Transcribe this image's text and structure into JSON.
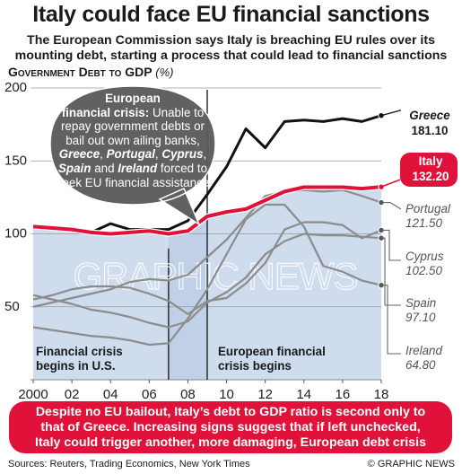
{
  "title": "Italy could face EU financial sanctions",
  "subtitle_line1": "The European Commission says Italy is breaching EU rules over its",
  "subtitle_line2": "mounting debt, starting a process that could lead to financial sanctions",
  "ylabel_main": "Government Debt to GDP",
  "ylabel_unit": "(%)",
  "bubble": {
    "heading_line1": "European",
    "heading_line2": "financial crisis:",
    "text_1": "Unable to repay government debts or bail out own ailing banks,",
    "country_1": "Greece",
    "country_2": "Portugal",
    "country_3": "Cyprus",
    "country_4": "Spain",
    "word_and": "and",
    "country_5": "Ireland",
    "text_2": "forced to seek EU financial assistance"
  },
  "annotations": {
    "us_crisis_line1": "Financial crisis",
    "us_crisis_line2": "begins in U.S.",
    "eu_crisis_line1": "European financial",
    "eu_crisis_line2": "crisis begins"
  },
  "bottom_line1": "Despite no EU bailout, Italy’s debt to GDP ratio is second only to",
  "bottom_line2": "that of Greece. Increasing signs suggest that if left unchecked,",
  "bottom_line3": "Italy could trigger another, more damaging, European debt crisis",
  "sources": "Sources: Reuters, Trading Economics, New York Times",
  "credit": "© GRAPHIC NEWS",
  "watermark": "GRAPHIC NEWS",
  "colors": {
    "accent_red": "#e0123a",
    "area_blue": "#cfdcee",
    "bubble_grey": "#5c5c5c",
    "other_lines": "#8c8c8c",
    "greece_line": "#111111"
  },
  "chart_data": {
    "type": "line",
    "title": "Government Debt to GDP (%)",
    "x": [
      2000,
      2001,
      2002,
      2003,
      2004,
      2005,
      2006,
      2007,
      2008,
      2009,
      2010,
      2011,
      2012,
      2013,
      2014,
      2015,
      2016,
      2017,
      2018
    ],
    "xticks": [
      2000,
      2002,
      2004,
      2006,
      2008,
      2010,
      2012,
      2014,
      2016,
      2018
    ],
    "xtick_labels": [
      "2000",
      "02",
      "04",
      "06",
      "08",
      "10",
      "12",
      "14",
      "16",
      "18"
    ],
    "ylim": [
      0,
      200
    ],
    "yticks": [
      50,
      100,
      150,
      200
    ],
    "grid": true,
    "shaded_range": [
      2007,
      2009
    ],
    "events": [
      {
        "x": 2007,
        "label": "Financial crisis begins in U.S."
      },
      {
        "x": 2009,
        "label": "European financial crisis begins"
      }
    ],
    "series": [
      {
        "name": "Greece",
        "value_label": "181.10",
        "values": [
          104,
          103,
          103,
          101,
          107,
          103,
          103,
          103,
          109,
          127,
          146,
          172,
          159,
          177,
          178,
          177,
          179,
          177,
          181.1
        ]
      },
      {
        "name": "Italy",
        "value_label": "132.20",
        "values": [
          105,
          104,
          103,
          101,
          100,
          101,
          102,
          100,
          102,
          112,
          115,
          117,
          123,
          129,
          132,
          132,
          132,
          131,
          132.2
        ]
      },
      {
        "name": "Portugal",
        "value_label": "121.50",
        "values": [
          50,
          53,
          56,
          59,
          62,
          67,
          69,
          68,
          72,
          84,
          96,
          111,
          126,
          129,
          130,
          129,
          130,
          126,
          121.5
        ]
      },
      {
        "name": "Cyprus",
        "value_label": "102.50",
        "values": [
          55,
          58,
          62,
          64,
          64,
          63,
          59,
          54,
          45,
          54,
          56,
          66,
          80,
          103,
          108,
          108,
          106,
          97,
          102.5
        ]
      },
      {
        "name": "Spain",
        "value_label": "97.10",
        "values": [
          58,
          55,
          52,
          48,
          46,
          43,
          39,
          36,
          40,
          53,
          60,
          70,
          86,
          95,
          100,
          99,
          99,
          98,
          97.1
        ]
      },
      {
        "name": "Ireland",
        "value_label": "64.80",
        "values": [
          36,
          34,
          32,
          30,
          29,
          27,
          24,
          25,
          42,
          62,
          86,
          110,
          120,
          120,
          105,
          78,
          74,
          68,
          64.8
        ]
      }
    ]
  }
}
